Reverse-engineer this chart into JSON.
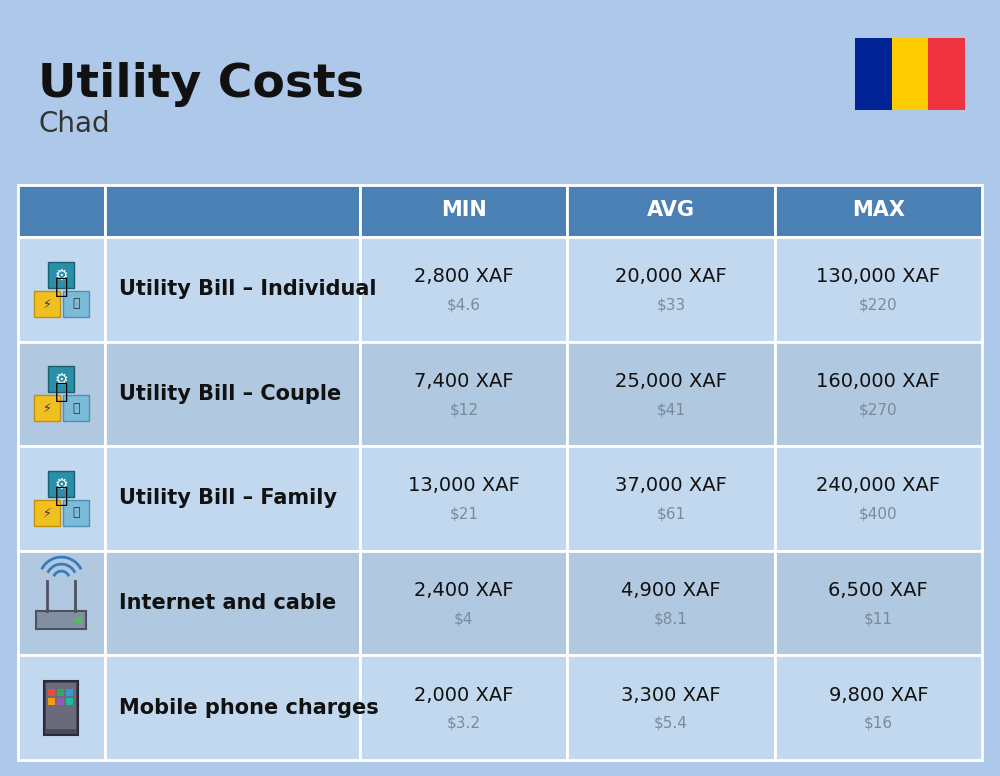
{
  "title": "Utility Costs",
  "subtitle": "Chad",
  "background_color": "#adc8e8",
  "header_color": "#4a80b4",
  "header_text_color": "#ffffff",
  "row_color_odd": "#c2d8ee",
  "row_color_even": "#b0c8e0",
  "cell_border_color": "#ffffff",
  "flag_colors": [
    "#002395",
    "#FECB00",
    "#EF3340"
  ],
  "columns": [
    "MIN",
    "AVG",
    "MAX"
  ],
  "rows": [
    {
      "label": "Utility Bill – Individual",
      "icon_type": "utility",
      "min_xaf": "2,800 XAF",
      "min_usd": "$4.6",
      "avg_xaf": "20,000 XAF",
      "avg_usd": "$33",
      "max_xaf": "130,000 XAF",
      "max_usd": "$220"
    },
    {
      "label": "Utility Bill – Couple",
      "icon_type": "utility",
      "min_xaf": "7,400 XAF",
      "min_usd": "$12",
      "avg_xaf": "25,000 XAF",
      "avg_usd": "$41",
      "max_xaf": "160,000 XAF",
      "max_usd": "$270"
    },
    {
      "label": "Utility Bill – Family",
      "icon_type": "utility",
      "min_xaf": "13,000 XAF",
      "min_usd": "$21",
      "avg_xaf": "37,000 XAF",
      "avg_usd": "$61",
      "max_xaf": "240,000 XAF",
      "max_usd": "$400"
    },
    {
      "label": "Internet and cable",
      "icon_type": "internet",
      "min_xaf": "2,400 XAF",
      "min_usd": "$4",
      "avg_xaf": "4,900 XAF",
      "avg_usd": "$8.1",
      "max_xaf": "6,500 XAF",
      "max_usd": "$11"
    },
    {
      "label": "Mobile phone charges",
      "icon_type": "mobile",
      "min_xaf": "2,000 XAF",
      "min_usd": "$3.2",
      "avg_xaf": "3,300 XAF",
      "avg_usd": "$5.4",
      "max_xaf": "9,800 XAF",
      "max_usd": "$16"
    }
  ],
  "title_fontsize": 34,
  "subtitle_fontsize": 20,
  "header_fontsize": 15,
  "label_fontsize": 15,
  "value_fontsize": 14,
  "usd_fontsize": 11
}
